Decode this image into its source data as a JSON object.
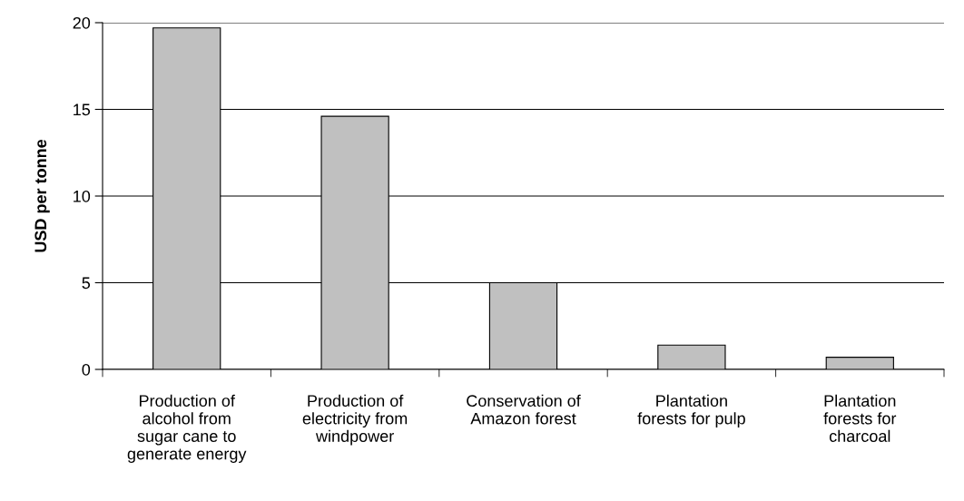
{
  "chart_data": {
    "type": "bar",
    "ylabel": "USD per tonne",
    "categories": [
      "Production of\nalcohol from\nsugar cane to\ngenerate energy",
      "Production of\nelectricity from\nwindpower",
      "Conservation of\nAmazon forest",
      "Plantation\nforests for pulp",
      "Plantation\nforests for\ncharcoal"
    ],
    "values": [
      19.7,
      14.6,
      5.0,
      1.4,
      0.7
    ],
    "color": "#c0c0c0",
    "ylim": [
      0,
      20
    ],
    "yticks": [
      0,
      5,
      10,
      15,
      20
    ],
    "grid": "y",
    "legend": false
  }
}
